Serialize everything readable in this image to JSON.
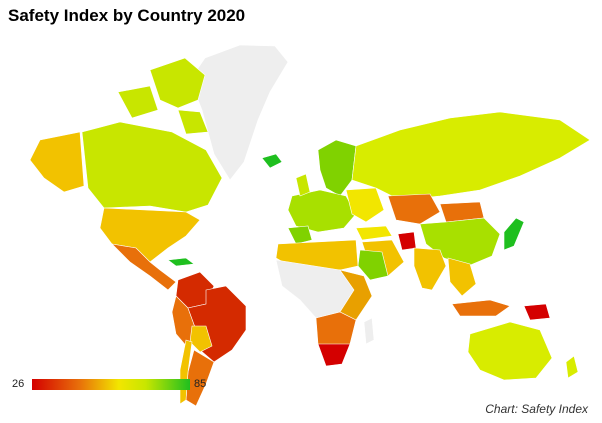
{
  "title": "Safety Index by Country 2020",
  "credit": "Chart: Safety Index",
  "legend": {
    "min": "26",
    "max": "85"
  },
  "colors": {
    "low": "#d40000",
    "mid_low": "#e8700a",
    "mid": "#f2e600",
    "mid_high": "#c8e600",
    "high": "#1fbf1f",
    "no_data": "#eeeeee",
    "border": "#ffffff"
  }
}
